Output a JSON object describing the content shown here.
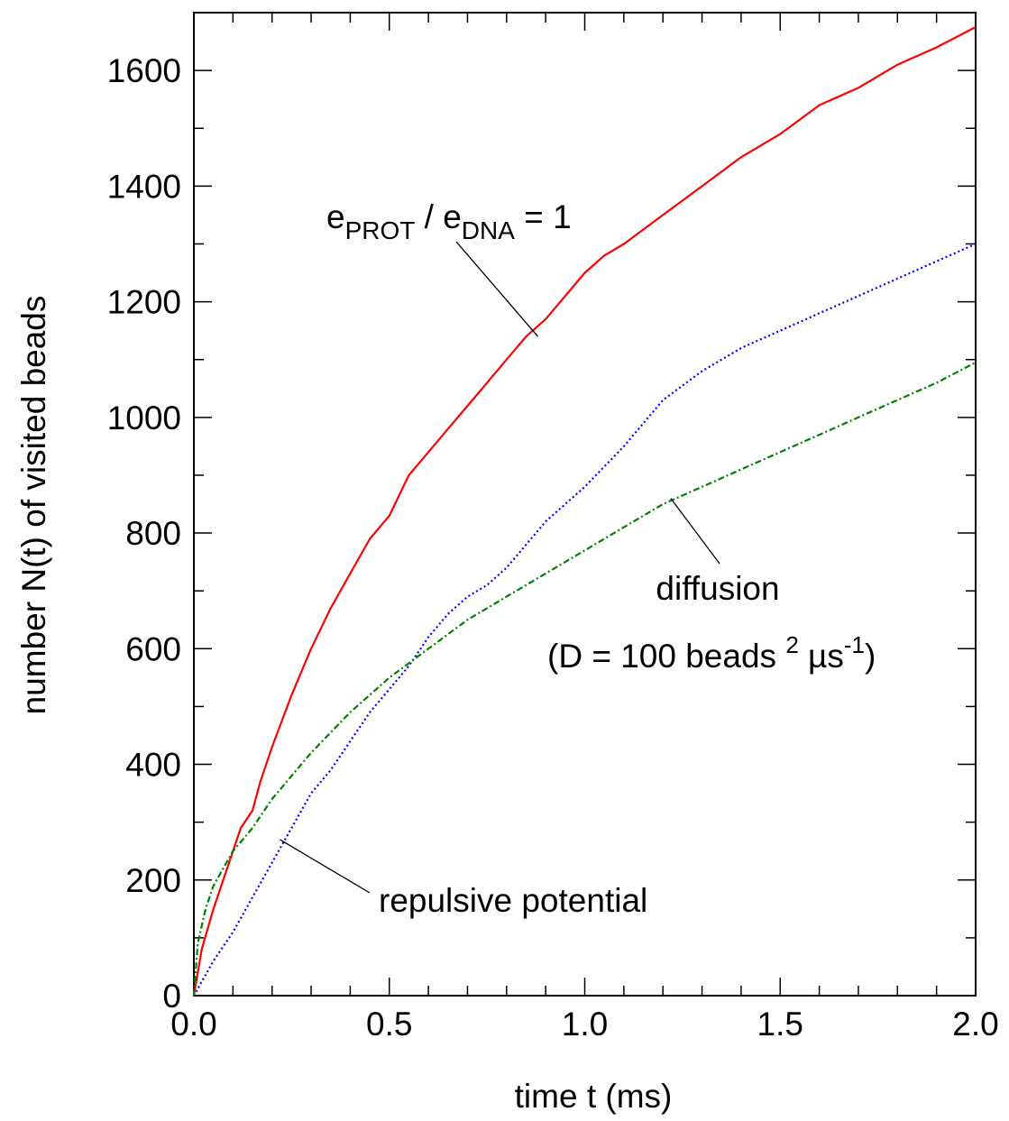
{
  "chart_data": {
    "type": "line",
    "title": "",
    "xlabel": "time t  (ms)",
    "ylabel": "number N(t) of visited beads",
    "xlim": [
      0.0,
      2.0
    ],
    "ylim": [
      0,
      1700
    ],
    "xticks": [
      0.0,
      0.5,
      1.0,
      1.5,
      2.0
    ],
    "xtick_labels": [
      "0.0",
      "0.5",
      "1.0",
      "1.5",
      "2.0"
    ],
    "yticks": [
      0,
      200,
      400,
      600,
      800,
      1000,
      1200,
      1400,
      1600
    ],
    "ytick_labels": [
      "0",
      "200",
      "400",
      "600",
      "800",
      "1000",
      "1200",
      "1400",
      "1600"
    ],
    "grid": false,
    "legend": "none",
    "series": [
      {
        "style": "solid",
        "color": "#ff0000",
        "x": [
          0.0,
          0.02,
          0.05,
          0.08,
          0.1,
          0.12,
          0.15,
          0.17,
          0.2,
          0.25,
          0.3,
          0.35,
          0.4,
          0.45,
          0.5,
          0.55,
          0.6,
          0.65,
          0.7,
          0.75,
          0.8,
          0.85,
          0.9,
          0.95,
          1.0,
          1.05,
          1.1,
          1.2,
          1.3,
          1.4,
          1.5,
          1.6,
          1.7,
          1.8,
          1.9,
          2.0
        ],
        "y": [
          0,
          80,
          150,
          210,
          250,
          290,
          320,
          370,
          430,
          520,
          600,
          670,
          730,
          790,
          830,
          900,
          940,
          980,
          1020,
          1060,
          1100,
          1140,
          1170,
          1210,
          1250,
          1280,
          1300,
          1350,
          1400,
          1450,
          1490,
          1540,
          1570,
          1610,
          1640,
          1675
        ]
      },
      {
        "style": "dotted",
        "color": "#0000ff",
        "x": [
          0.0,
          0.05,
          0.1,
          0.15,
          0.2,
          0.25,
          0.3,
          0.35,
          0.4,
          0.45,
          0.5,
          0.55,
          0.6,
          0.65,
          0.7,
          0.75,
          0.8,
          0.9,
          1.0,
          1.1,
          1.2,
          1.3,
          1.4,
          1.5,
          1.6,
          1.7,
          1.8,
          1.9,
          2.0
        ],
        "y": [
          0,
          60,
          110,
          170,
          230,
          290,
          350,
          390,
          440,
          490,
          530,
          570,
          620,
          660,
          690,
          710,
          740,
          820,
          880,
          950,
          1030,
          1080,
          1120,
          1150,
          1180,
          1210,
          1240,
          1270,
          1300
        ]
      },
      {
        "style": "dashdot",
        "color": "#008000",
        "x": [
          0.0,
          0.01,
          0.03,
          0.05,
          0.1,
          0.15,
          0.2,
          0.3,
          0.4,
          0.5,
          0.6,
          0.7,
          0.8,
          0.9,
          1.0,
          1.1,
          1.2,
          1.3,
          1.4,
          1.5,
          1.6,
          1.7,
          1.8,
          1.9,
          2.0
        ],
        "y": [
          0,
          90,
          150,
          190,
          250,
          290,
          340,
          420,
          490,
          550,
          600,
          650,
          690,
          730,
          770,
          810,
          850,
          880,
          910,
          940,
          970,
          1000,
          1030,
          1060,
          1095
        ]
      }
    ],
    "annotations": [
      {
        "id": "prot",
        "parts": [
          {
            "text": "e",
            "sub": false
          },
          {
            "text": "PROT",
            "sub": true
          },
          {
            "text": " / e",
            "sub": false
          },
          {
            "text": "DNA",
            "sub": true
          },
          {
            "text": " = 1",
            "sub": false
          }
        ],
        "pointer": {
          "x": 0.88,
          "y": 1140
        }
      },
      {
        "id": "diffusion",
        "line1": "diffusion",
        "line2_parts": [
          {
            "text": "(D = 100 beads ",
            "script": "none"
          },
          {
            "text": "2",
            "script": "sup"
          },
          {
            "text": " µs",
            "script": "none"
          },
          {
            "text": "-1",
            "script": "sup"
          },
          {
            "text": ")",
            "script": "none"
          }
        ],
        "pointer": {
          "x": 1.22,
          "y": 860
        }
      },
      {
        "id": "repulsive",
        "text": "repulsive potential",
        "pointer": {
          "x": 0.22,
          "y": 270
        }
      }
    ]
  }
}
